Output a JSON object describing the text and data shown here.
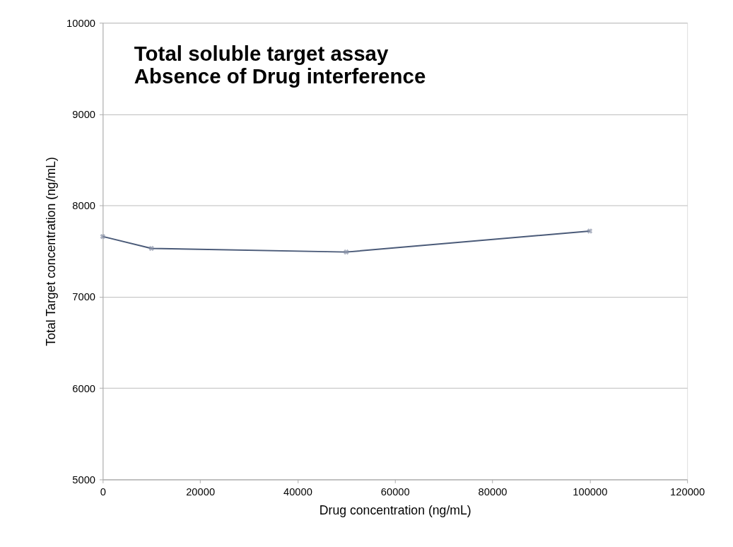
{
  "chart_data": {
    "type": "line",
    "title": [
      "Total soluble target assay",
      "Absence of Drug interference"
    ],
    "xlabel": "Drug concentration (ng/mL)",
    "ylabel": "Total Target concentration (ng/mL)",
    "x": [
      0,
      10000,
      50000,
      100000
    ],
    "series": [
      {
        "color": "#4a5a78",
        "values": [
          7660,
          7530,
          7490,
          7720
        ]
      }
    ],
    "xlim": [
      0,
      120000
    ],
    "xticks": [
      0,
      20000,
      40000,
      60000,
      80000,
      100000,
      120000
    ],
    "ylim": [
      5000,
      10000
    ],
    "yticks": [
      5000,
      6000,
      7000,
      8000,
      9000,
      10000
    ],
    "grid": "y",
    "marker": "cross",
    "line_style": "solid"
  }
}
